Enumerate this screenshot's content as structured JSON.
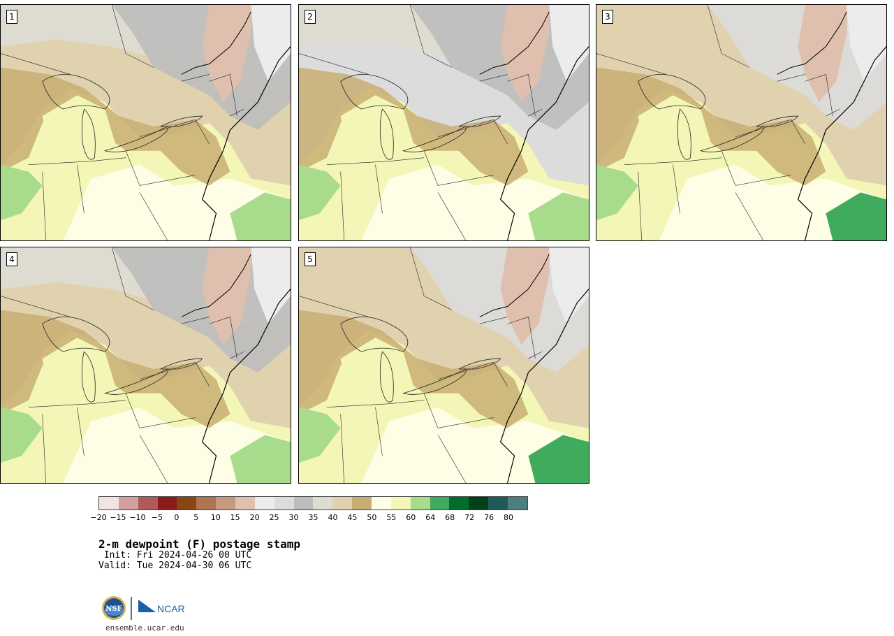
{
  "panels": [
    {
      "label": "1"
    },
    {
      "label": "2"
    },
    {
      "label": "3"
    },
    {
      "label": "4"
    },
    {
      "label": "5"
    }
  ],
  "colorbar": {
    "colors": [
      "#efe3e3",
      "#d2a0a0",
      "#b05a5a",
      "#8b1a1a",
      "#8b4513",
      "#ad7550",
      "#c69a80",
      "#dfc0ae",
      "#ececec",
      "#dcdcdc",
      "#bdbdbd",
      "#dedcd0",
      "#e0d2ae",
      "#c8ae72",
      "#fefde6",
      "#f3f6b6",
      "#a8dc8c",
      "#40ab5d",
      "#006d2c",
      "#00401a",
      "#1f5a5a",
      "#4d7f7f"
    ],
    "tick_labels": [
      "−20",
      "−15",
      "−10",
      "−5",
      "0",
      "5",
      "10",
      "15",
      "20",
      "25",
      "30",
      "35",
      "40",
      "45",
      "50",
      "55",
      "60",
      "64",
      "68",
      "72",
      "76",
      "80"
    ]
  },
  "title": "2-m dewpoint (F) postage stamp",
  "init": " Init: Fri 2024-04-26 00 UTC",
  "valid": "Valid: Tue 2024-04-30 06 UTC",
  "logos": {
    "nsf": "NSF",
    "ncar": "NCAR"
  },
  "site": "ensemble.ucar.edu"
}
